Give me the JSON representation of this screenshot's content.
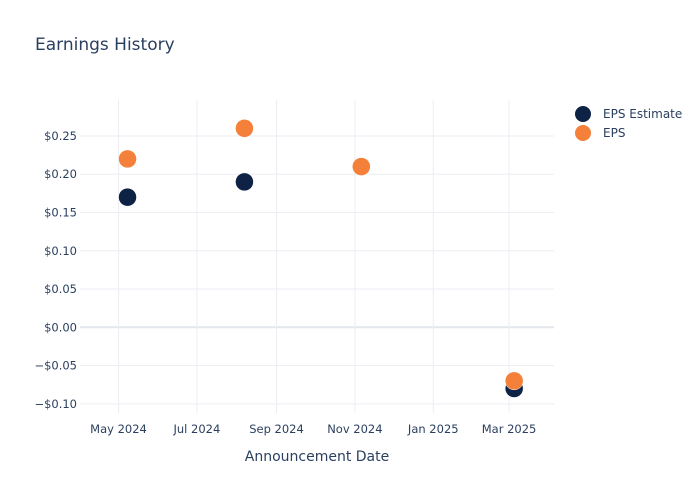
{
  "chart_data": {
    "type": "scatter",
    "title": "Earnings History",
    "xlabel": "Announcement Date",
    "ylabel": "",
    "x_ticks": [
      {
        "label": "May 2024",
        "date": "2024-05-01"
      },
      {
        "label": "Jul 2024",
        "date": "2024-07-01"
      },
      {
        "label": "Sep 2024",
        "date": "2024-09-01"
      },
      {
        "label": "Nov 2024",
        "date": "2024-11-01"
      },
      {
        "label": "Jan 2025",
        "date": "2025-01-01"
      },
      {
        "label": "Mar 2025",
        "date": "2025-03-01"
      }
    ],
    "y_ticks": [
      {
        "label": "$0.25",
        "value": 0.25
      },
      {
        "label": "$0.20",
        "value": 0.2
      },
      {
        "label": "$0.15",
        "value": 0.15
      },
      {
        "label": "$0.10",
        "value": 0.1
      },
      {
        "label": "$0.05",
        "value": 0.05
      },
      {
        "label": "$0.00",
        "value": 0.0
      },
      {
        "label": "−$0.05",
        "value": -0.05
      },
      {
        "label": "−$0.10",
        "value": -0.1
      }
    ],
    "xlim": [
      "2024-04-01",
      "2025-04-05"
    ],
    "ylim": [
      -0.112,
      0.297
    ],
    "grid": true,
    "legend_position": "top-right",
    "series": [
      {
        "name": "EPS Estimate",
        "color": "#0d2245",
        "points": [
          {
            "date": "2024-05-08",
            "value": 0.17
          },
          {
            "date": "2024-08-07",
            "value": 0.19
          },
          {
            "date": "2024-11-06",
            "value": 0.21
          },
          {
            "date": "2025-03-05",
            "value": -0.08
          }
        ]
      },
      {
        "name": "EPS",
        "color": "#f5803a",
        "points": [
          {
            "date": "2024-05-08",
            "value": 0.22
          },
          {
            "date": "2024-08-07",
            "value": 0.26
          },
          {
            "date": "2024-11-06",
            "value": 0.21
          },
          {
            "date": "2025-03-05",
            "value": -0.07
          }
        ]
      }
    ]
  }
}
